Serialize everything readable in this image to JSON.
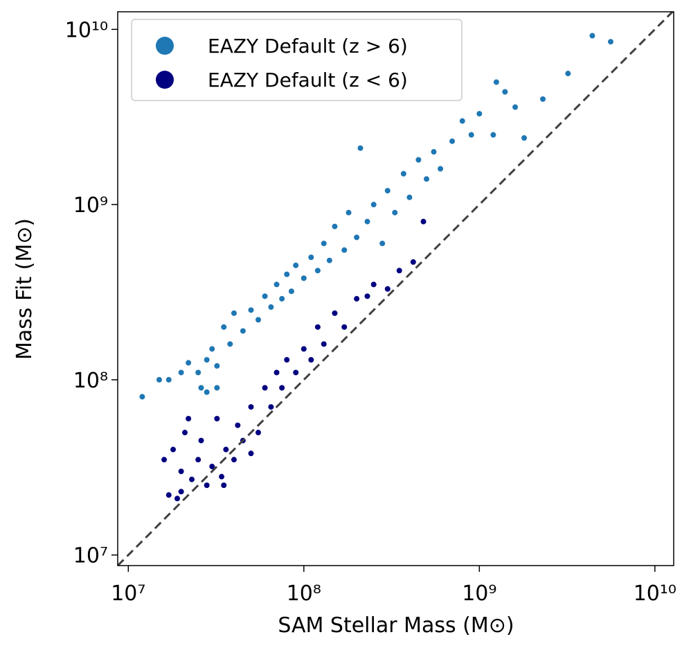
{
  "chart_data": {
    "type": "scatter",
    "xlabel": "SAM Stellar Mass (M⊙)",
    "ylabel": "Mass Fit (M⊙)",
    "log_x": true,
    "log_y": true,
    "xlim": [
      8700000.0,
      12800000000.0
    ],
    "ylim": [
      8700000.0,
      12600000000.0
    ],
    "xticks": [
      {
        "value": 10000000.0,
        "label": "10⁷"
      },
      {
        "value": 100000000.0,
        "label": "10⁸"
      },
      {
        "value": 1000000000.0,
        "label": "10⁹"
      },
      {
        "value": 10000000000.0,
        "label": "10¹⁰"
      }
    ],
    "yticks": [
      {
        "value": 10000000.0,
        "label": "10⁷"
      },
      {
        "value": 100000000.0,
        "label": "10⁸"
      },
      {
        "value": 1000000000.0,
        "label": "10⁹"
      },
      {
        "value": 10000000000.0,
        "label": "10¹⁰"
      }
    ],
    "identity_line": true,
    "legend": "upper left",
    "series": [
      {
        "name": "EAZY Default (z > 6)",
        "color": "#1f77b4",
        "x": [
          12000000.0,
          15000000.0,
          17000000.0,
          20000000.0,
          22000000.0,
          25000000.0,
          28000000.0,
          30000000.0,
          32000000.0,
          35000000.0,
          38000000.0,
          40000000.0,
          45000000.0,
          50000000.0,
          55000000.0,
          60000000.0,
          65000000.0,
          70000000.0,
          75000000.0,
          80000000.0,
          85000000.0,
          90000000.0,
          100000000.0,
          110000000.0,
          120000000.0,
          130000000.0,
          140000000.0,
          150000000.0,
          170000000.0,
          180000000.0,
          200000000.0,
          210000000.0,
          230000000.0,
          250000000.0,
          280000000.0,
          300000000.0,
          330000000.0,
          370000000.0,
          400000000.0,
          450000000.0,
          500000000.0,
          550000000.0,
          600000000.0,
          700000000.0,
          800000000.0,
          900000000.0,
          1000000000.0,
          1200000000.0,
          1250000000.0,
          1400000000.0,
          1600000000.0,
          1800000000.0,
          2300000000.0,
          3200000000.0,
          4400000000.0,
          5600000000.0,
          28000000.0,
          32000000.0,
          26000000.0
        ],
        "y": [
          80000000.0,
          100000000.0,
          100000000.0,
          110000000.0,
          125000000.0,
          110000000.0,
          130000000.0,
          150000000.0,
          120000000.0,
          200000000.0,
          160000000.0,
          240000000.0,
          190000000.0,
          250000000.0,
          220000000.0,
          300000000.0,
          260000000.0,
          350000000.0,
          290000000.0,
          400000000.0,
          320000000.0,
          450000000.0,
          380000000.0,
          500000000.0,
          420000000.0,
          600000000.0,
          480000000.0,
          750000000.0,
          550000000.0,
          900000000.0,
          650000000.0,
          2100000000.0,
          800000000.0,
          1000000000.0,
          600000000.0,
          1200000000.0,
          900000000.0,
          1500000000.0,
          1100000000.0,
          1800000000.0,
          1400000000.0,
          2000000000.0,
          1600000000.0,
          2300000000.0,
          3000000000.0,
          2500000000.0,
          3300000000.0,
          2500000000.0,
          5000000000.0,
          4400000000.0,
          3600000000.0,
          2400000000.0,
          4000000000.0,
          5600000000.0,
          9200000000.0,
          8500000000.0,
          85000000.0,
          90000000.0,
          90000000.0
        ]
      },
      {
        "name": "EAZY Default (z < 6)",
        "color": "#000080",
        "x": [
          17000000.0,
          19000000.0,
          20000000.0,
          16000000.0,
          18000000.0,
          20000000.0,
          21000000.0,
          23000000.0,
          25000000.0,
          26000000.0,
          28000000.0,
          30000000.0,
          32000000.0,
          34000000.0,
          36000000.0,
          40000000.0,
          42000000.0,
          45000000.0,
          50000000.0,
          55000000.0,
          60000000.0,
          65000000.0,
          70000000.0,
          75000000.0,
          80000000.0,
          90000000.0,
          100000000.0,
          110000000.0,
          120000000.0,
          130000000.0,
          150000000.0,
          170000000.0,
          200000000.0,
          230000000.0,
          250000000.0,
          300000000.0,
          350000000.0,
          420000000.0,
          480000000.0,
          35000000.0,
          50000000.0,
          22000000.0
        ],
        "y": [
          22000000.0,
          21000000.0,
          23000000.0,
          35000000.0,
          40000000.0,
          30000000.0,
          50000000.0,
          27000000.0,
          35000000.0,
          45000000.0,
          25000000.0,
          32000000.0,
          60000000.0,
          28000000.0,
          40000000.0,
          35000000.0,
          55000000.0,
          45000000.0,
          70000000.0,
          50000000.0,
          90000000.0,
          70000000.0,
          110000000.0,
          90000000.0,
          130000000.0,
          110000000.0,
          150000000.0,
          130000000.0,
          200000000.0,
          160000000.0,
          240000000.0,
          200000000.0,
          290000000.0,
          300000000.0,
          350000000.0,
          330000000.0,
          420000000.0,
          470000000.0,
          800000000.0,
          25000000.0,
          38000000.0,
          60000000.0
        ]
      }
    ]
  }
}
